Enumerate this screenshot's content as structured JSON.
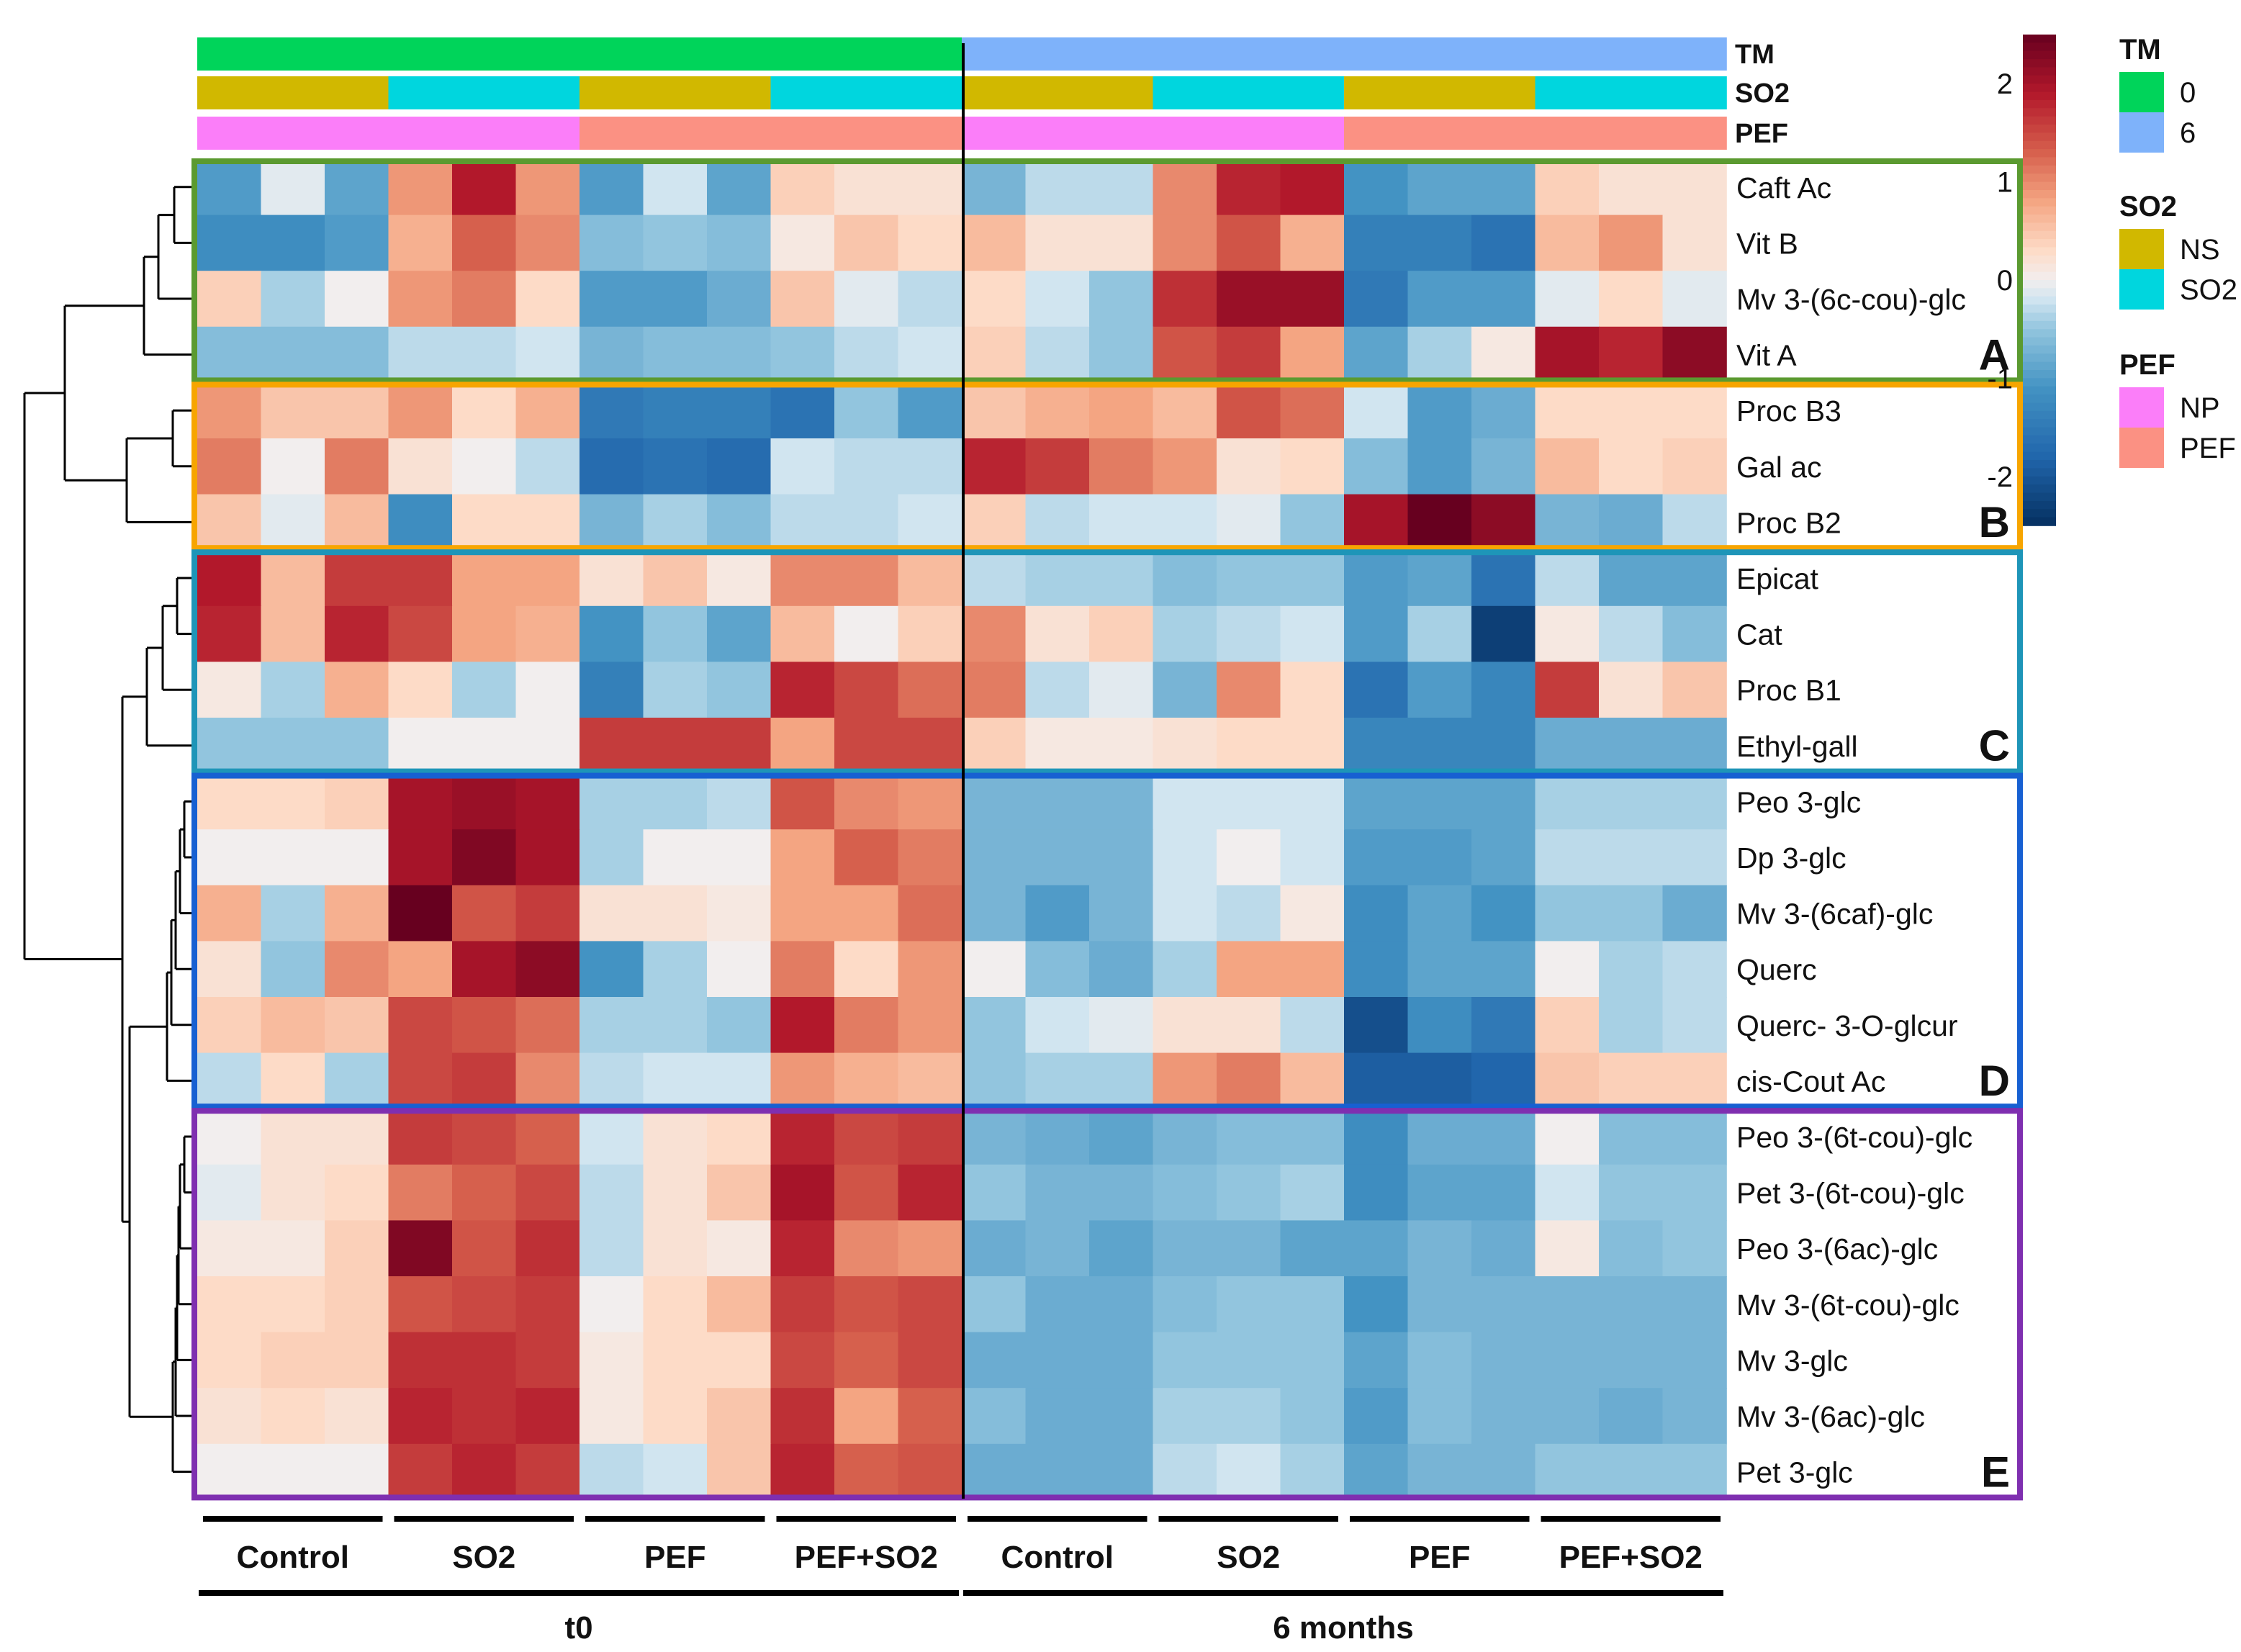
{
  "chart_data": {
    "type": "heatmap",
    "title": "",
    "color_scale": {
      "min": -2.5,
      "max": 2.5,
      "ticks": [
        "2",
        "1",
        "0",
        "-1",
        "-2"
      ],
      "stops": [
        {
          "v": -2.5,
          "c": "#053061"
        },
        {
          "v": -1.8,
          "c": "#2166ac"
        },
        {
          "v": -1.1,
          "c": "#4393c3"
        },
        {
          "v": -0.5,
          "c": "#92c5de"
        },
        {
          "v": -0.2,
          "c": "#d1e5f0"
        },
        {
          "v": 0.0,
          "c": "#f2eeee"
        },
        {
          "v": 0.3,
          "c": "#fddbc7"
        },
        {
          "v": 0.8,
          "c": "#f4a582"
        },
        {
          "v": 1.3,
          "c": "#d6604d"
        },
        {
          "v": 1.9,
          "c": "#b2182b"
        },
        {
          "v": 2.5,
          "c": "#67001f"
        }
      ]
    },
    "annotation_tracks": [
      {
        "name": "TM",
        "values": [
          "0",
          "0",
          "0",
          "0",
          "0",
          "0",
          "0",
          "0",
          "0",
          "0",
          "0",
          "0",
          "6",
          "6",
          "6",
          "6",
          "6",
          "6",
          "6",
          "6",
          "6",
          "6",
          "6",
          "6"
        ]
      },
      {
        "name": "SO2",
        "values": [
          "NS",
          "NS",
          "NS",
          "SO2",
          "SO2",
          "SO2",
          "NS",
          "NS",
          "NS",
          "SO2",
          "SO2",
          "SO2",
          "NS",
          "NS",
          "NS",
          "SO2",
          "SO2",
          "SO2",
          "NS",
          "NS",
          "NS",
          "SO2",
          "SO2",
          "SO2"
        ]
      },
      {
        "name": "PEF",
        "values": [
          "NP",
          "NP",
          "NP",
          "NP",
          "NP",
          "NP",
          "PEF",
          "PEF",
          "PEF",
          "PEF",
          "PEF",
          "PEF",
          "NP",
          "NP",
          "NP",
          "NP",
          "NP",
          "NP",
          "PEF",
          "PEF",
          "PEF",
          "PEF",
          "PEF",
          "PEF"
        ]
      }
    ],
    "legend": [
      {
        "title": "TM",
        "items": [
          {
            "label": "0",
            "color": "#00d45a"
          },
          {
            "label": "6",
            "color": "#7eb2fa"
          }
        ]
      },
      {
        "title": "SO2",
        "items": [
          {
            "label": "NS",
            "color": "#d1b800"
          },
          {
            "label": "SO2",
            "color": "#00d6de"
          }
        ]
      },
      {
        "title": "PEF",
        "items": [
          {
            "label": "NP",
            "color": "#fb7ef9"
          },
          {
            "label": "PEF",
            "color": "#fb9183"
          }
        ]
      }
    ],
    "rows": [
      {
        "label": "Caft Ac",
        "values": [
          -1.0,
          -0.1,
          -0.9,
          0.9,
          1.9,
          0.9,
          -1.0,
          -0.2,
          -0.9,
          0.4,
          0.2,
          0.2,
          -0.7,
          -0.3,
          -0.3,
          1.0,
          1.8,
          1.9,
          -1.1,
          -0.9,
          -0.9,
          0.4,
          0.2,
          0.2
        ]
      },
      {
        "label": "Vit B",
        "values": [
          -1.2,
          -1.2,
          -1.0,
          0.7,
          1.3,
          1.0,
          -0.6,
          -0.5,
          -0.6,
          0.1,
          0.5,
          0.3,
          0.6,
          0.2,
          0.2,
          1.0,
          1.4,
          0.7,
          -1.4,
          -1.4,
          -1.6,
          0.6,
          0.9,
          0.2
        ]
      },
      {
        "label": "Mv 3-(6c-cou)-glc",
        "values": [
          0.4,
          -0.4,
          0.0,
          0.9,
          1.1,
          0.3,
          -1.0,
          -1.0,
          -0.8,
          0.5,
          -0.1,
          -0.3,
          0.3,
          -0.2,
          -0.5,
          1.7,
          2.1,
          2.1,
          -1.5,
          -1.0,
          -1.0,
          -0.1,
          0.3,
          -0.1
        ]
      },
      {
        "label": "Vit A",
        "values": [
          -0.6,
          -0.6,
          -0.6,
          -0.3,
          -0.3,
          -0.2,
          -0.7,
          -0.6,
          -0.6,
          -0.5,
          -0.3,
          -0.2,
          0.4,
          -0.3,
          -0.5,
          1.4,
          1.6,
          0.8,
          -0.9,
          -0.4,
          0.1,
          2.0,
          1.8,
          2.2
        ]
      },
      {
        "label": "Proc B3",
        "values": [
          0.9,
          0.5,
          0.5,
          0.9,
          0.3,
          0.7,
          -1.5,
          -1.4,
          -1.4,
          -1.6,
          -0.5,
          -1.0,
          0.5,
          0.7,
          0.8,
          0.6,
          1.4,
          1.2,
          -0.2,
          -1.0,
          -0.8,
          0.3,
          0.3,
          0.3
        ]
      },
      {
        "label": "Gal ac",
        "values": [
          1.1,
          0.0,
          1.1,
          0.2,
          0.0,
          -0.3,
          -1.7,
          -1.6,
          -1.7,
          -0.2,
          -0.3,
          -0.3,
          1.8,
          1.6,
          1.1,
          0.9,
          0.2,
          0.3,
          -0.6,
          -1.0,
          -0.7,
          0.6,
          0.3,
          0.4
        ]
      },
      {
        "label": "Proc B2",
        "values": [
          0.5,
          -0.1,
          0.6,
          -1.2,
          0.3,
          0.3,
          -0.7,
          -0.4,
          -0.6,
          -0.3,
          -0.3,
          -0.2,
          0.4,
          -0.3,
          -0.2,
          -0.2,
          -0.1,
          -0.5,
          2.0,
          2.5,
          2.2,
          -0.7,
          -0.8,
          -0.3
        ]
      },
      {
        "label": "Epicat",
        "values": [
          1.9,
          0.6,
          1.6,
          1.6,
          0.8,
          0.8,
          0.2,
          0.5,
          0.1,
          1.0,
          1.0,
          0.6,
          -0.3,
          -0.4,
          -0.4,
          -0.6,
          -0.5,
          -0.5,
          -1.0,
          -0.9,
          -1.6,
          -0.3,
          -0.9,
          -0.9
        ]
      },
      {
        "label": "Cat",
        "values": [
          1.8,
          0.6,
          1.8,
          1.5,
          0.8,
          0.7,
          -1.1,
          -0.5,
          -0.9,
          0.6,
          0.0,
          0.4,
          1.0,
          0.2,
          0.4,
          -0.4,
          -0.3,
          -0.2,
          -1.0,
          -0.4,
          -2.3,
          0.1,
          -0.3,
          -0.6
        ]
      },
      {
        "label": "Proc B1",
        "values": [
          0.1,
          -0.4,
          0.7,
          0.3,
          -0.4,
          0.0,
          -1.4,
          -0.4,
          -0.5,
          1.8,
          1.5,
          1.2,
          1.1,
          -0.3,
          -0.1,
          -0.7,
          1.0,
          0.3,
          -1.6,
          -1.0,
          -1.3,
          1.6,
          0.2,
          0.5
        ]
      },
      {
        "label": "Ethyl-gall",
        "values": [
          -0.5,
          -0.5,
          -0.5,
          0.0,
          0.0,
          0.0,
          1.6,
          1.6,
          1.6,
          0.8,
          1.5,
          1.5,
          0.4,
          0.1,
          0.1,
          0.2,
          0.3,
          0.3,
          -1.3,
          -1.3,
          -1.3,
          -0.8,
          -0.8,
          -0.8
        ]
      },
      {
        "label": "Peo 3-glc",
        "values": [
          0.3,
          0.3,
          0.4,
          2.0,
          2.1,
          2.0,
          -0.4,
          -0.4,
          -0.3,
          1.4,
          1.0,
          0.9,
          -0.7,
          -0.7,
          -0.7,
          -0.2,
          -0.2,
          -0.2,
          -0.9,
          -0.9,
          -0.9,
          -0.4,
          -0.4,
          -0.4
        ]
      },
      {
        "label": "Dp 3-glc",
        "values": [
          0.0,
          0.0,
          0.0,
          2.0,
          2.3,
          2.0,
          -0.4,
          0.0,
          0.0,
          0.8,
          1.3,
          1.1,
          -0.7,
          -0.7,
          -0.7,
          -0.2,
          0.0,
          -0.2,
          -1.0,
          -1.0,
          -0.9,
          -0.3,
          -0.3,
          -0.3
        ]
      },
      {
        "label": "Mv 3-(6caf)-glc",
        "values": [
          0.7,
          -0.4,
          0.7,
          2.5,
          1.4,
          1.6,
          0.2,
          0.2,
          0.1,
          0.8,
          0.8,
          1.2,
          -0.7,
          -1.0,
          -0.7,
          -0.2,
          -0.3,
          0.1,
          -1.2,
          -0.9,
          -1.1,
          -0.5,
          -0.5,
          -0.8
        ]
      },
      {
        "label": "Querc",
        "values": [
          0.2,
          -0.5,
          1.0,
          0.8,
          2.0,
          2.2,
          -1.1,
          -0.4,
          0.0,
          1.1,
          0.3,
          0.9,
          0.0,
          -0.6,
          -0.8,
          -0.4,
          0.8,
          0.8,
          -1.2,
          -0.9,
          -0.9,
          0.0,
          -0.4,
          -0.3
        ]
      },
      {
        "label": "Querc- 3-O-glcur",
        "values": [
          0.4,
          0.6,
          0.5,
          1.5,
          1.4,
          1.2,
          -0.4,
          -0.4,
          -0.5,
          1.9,
          1.1,
          0.9,
          -0.5,
          -0.2,
          -0.1,
          0.2,
          0.2,
          -0.3,
          -2.1,
          -1.2,
          -1.5,
          0.4,
          -0.4,
          -0.3
        ]
      },
      {
        "label": "cis-Cout Ac",
        "values": [
          -0.3,
          0.3,
          -0.4,
          1.5,
          1.6,
          1.0,
          -0.3,
          -0.2,
          -0.2,
          0.9,
          0.7,
          0.6,
          -0.5,
          -0.4,
          -0.4,
          0.9,
          1.1,
          0.6,
          -1.9,
          -1.9,
          -1.8,
          0.5,
          0.4,
          0.4
        ]
      },
      {
        "label": "Peo 3-(6t-cou)-glc",
        "values": [
          0.0,
          0.2,
          0.2,
          1.6,
          1.5,
          1.3,
          -0.2,
          0.2,
          0.3,
          1.8,
          1.5,
          1.6,
          -0.7,
          -0.8,
          -0.9,
          -0.7,
          -0.6,
          -0.6,
          -1.2,
          -0.8,
          -0.8,
          0.0,
          -0.6,
          -0.6
        ]
      },
      {
        "label": "Pet 3-(6t-cou)-glc",
        "values": [
          -0.1,
          0.2,
          0.3,
          1.1,
          1.3,
          1.5,
          -0.3,
          0.2,
          0.5,
          2.0,
          1.4,
          1.8,
          -0.5,
          -0.7,
          -0.7,
          -0.6,
          -0.5,
          -0.4,
          -1.2,
          -0.9,
          -0.9,
          -0.2,
          -0.5,
          -0.5
        ]
      },
      {
        "label": "Peo 3-(6ac)-glc",
        "values": [
          0.1,
          0.1,
          0.4,
          2.3,
          1.4,
          1.7,
          -0.3,
          0.2,
          0.1,
          1.8,
          1.0,
          0.9,
          -0.8,
          -0.7,
          -0.9,
          -0.7,
          -0.7,
          -0.9,
          -0.9,
          -0.7,
          -0.8,
          0.1,
          -0.6,
          -0.5
        ]
      },
      {
        "label": "Mv 3-(6t-cou)-glc",
        "values": [
          0.3,
          0.3,
          0.4,
          1.4,
          1.5,
          1.6,
          0.0,
          0.3,
          0.6,
          1.6,
          1.4,
          1.5,
          -0.5,
          -0.8,
          -0.8,
          -0.6,
          -0.5,
          -0.5,
          -1.1,
          -0.7,
          -0.7,
          -0.7,
          -0.7,
          -0.7
        ]
      },
      {
        "label": "Mv 3-glc",
        "values": [
          0.3,
          0.4,
          0.4,
          1.7,
          1.7,
          1.6,
          0.1,
          0.3,
          0.3,
          1.5,
          1.3,
          1.5,
          -0.8,
          -0.8,
          -0.8,
          -0.5,
          -0.5,
          -0.5,
          -0.9,
          -0.6,
          -0.7,
          -0.7,
          -0.7,
          -0.7
        ]
      },
      {
        "label": "Mv 3-(6ac)-glc",
        "values": [
          0.2,
          0.3,
          0.2,
          1.8,
          1.7,
          1.8,
          0.1,
          0.3,
          0.5,
          1.7,
          0.8,
          1.3,
          -0.6,
          -0.8,
          -0.8,
          -0.4,
          -0.4,
          -0.5,
          -1.0,
          -0.6,
          -0.7,
          -0.7,
          -0.8,
          -0.7
        ]
      },
      {
        "label": "Pet 3-glc",
        "values": [
          0.0,
          0.0,
          0.0,
          1.6,
          1.8,
          1.6,
          -0.3,
          -0.2,
          0.5,
          1.8,
          1.3,
          1.4,
          -0.8,
          -0.8,
          -0.8,
          -0.3,
          -0.2,
          -0.4,
          -0.9,
          -0.7,
          -0.7,
          -0.5,
          -0.5,
          -0.5
        ]
      }
    ],
    "clusters": [
      {
        "label": "A",
        "rows": [
          0,
          3
        ],
        "color": "#5b9a30"
      },
      {
        "label": "B",
        "rows": [
          4,
          6
        ],
        "color": "#f7a500"
      },
      {
        "label": "C",
        "rows": [
          7,
          10
        ],
        "color": "#1e95b8"
      },
      {
        "label": "D",
        "rows": [
          11,
          16
        ],
        "color": "#1760d2"
      },
      {
        "label": "E",
        "rows": [
          17,
          23
        ],
        "color": "#7f2fb0"
      }
    ],
    "column_groups": [
      {
        "label": "Control",
        "cols": [
          0,
          2
        ]
      },
      {
        "label": "SO2",
        "cols": [
          3,
          5
        ]
      },
      {
        "label": "PEF",
        "cols": [
          6,
          8
        ]
      },
      {
        "label": "PEF+SO2",
        "cols": [
          9,
          11
        ]
      },
      {
        "label": "Control",
        "cols": [
          12,
          14
        ]
      },
      {
        "label": "SO2",
        "cols": [
          15,
          17
        ]
      },
      {
        "label": "PEF",
        "cols": [
          18,
          20
        ]
      },
      {
        "label": "PEF+SO2",
        "cols": [
          21,
          23
        ]
      }
    ],
    "time_groups": [
      {
        "label": "t0",
        "cols": [
          0,
          11
        ]
      },
      {
        "label": "6 months",
        "cols": [
          12,
          23
        ]
      }
    ]
  }
}
